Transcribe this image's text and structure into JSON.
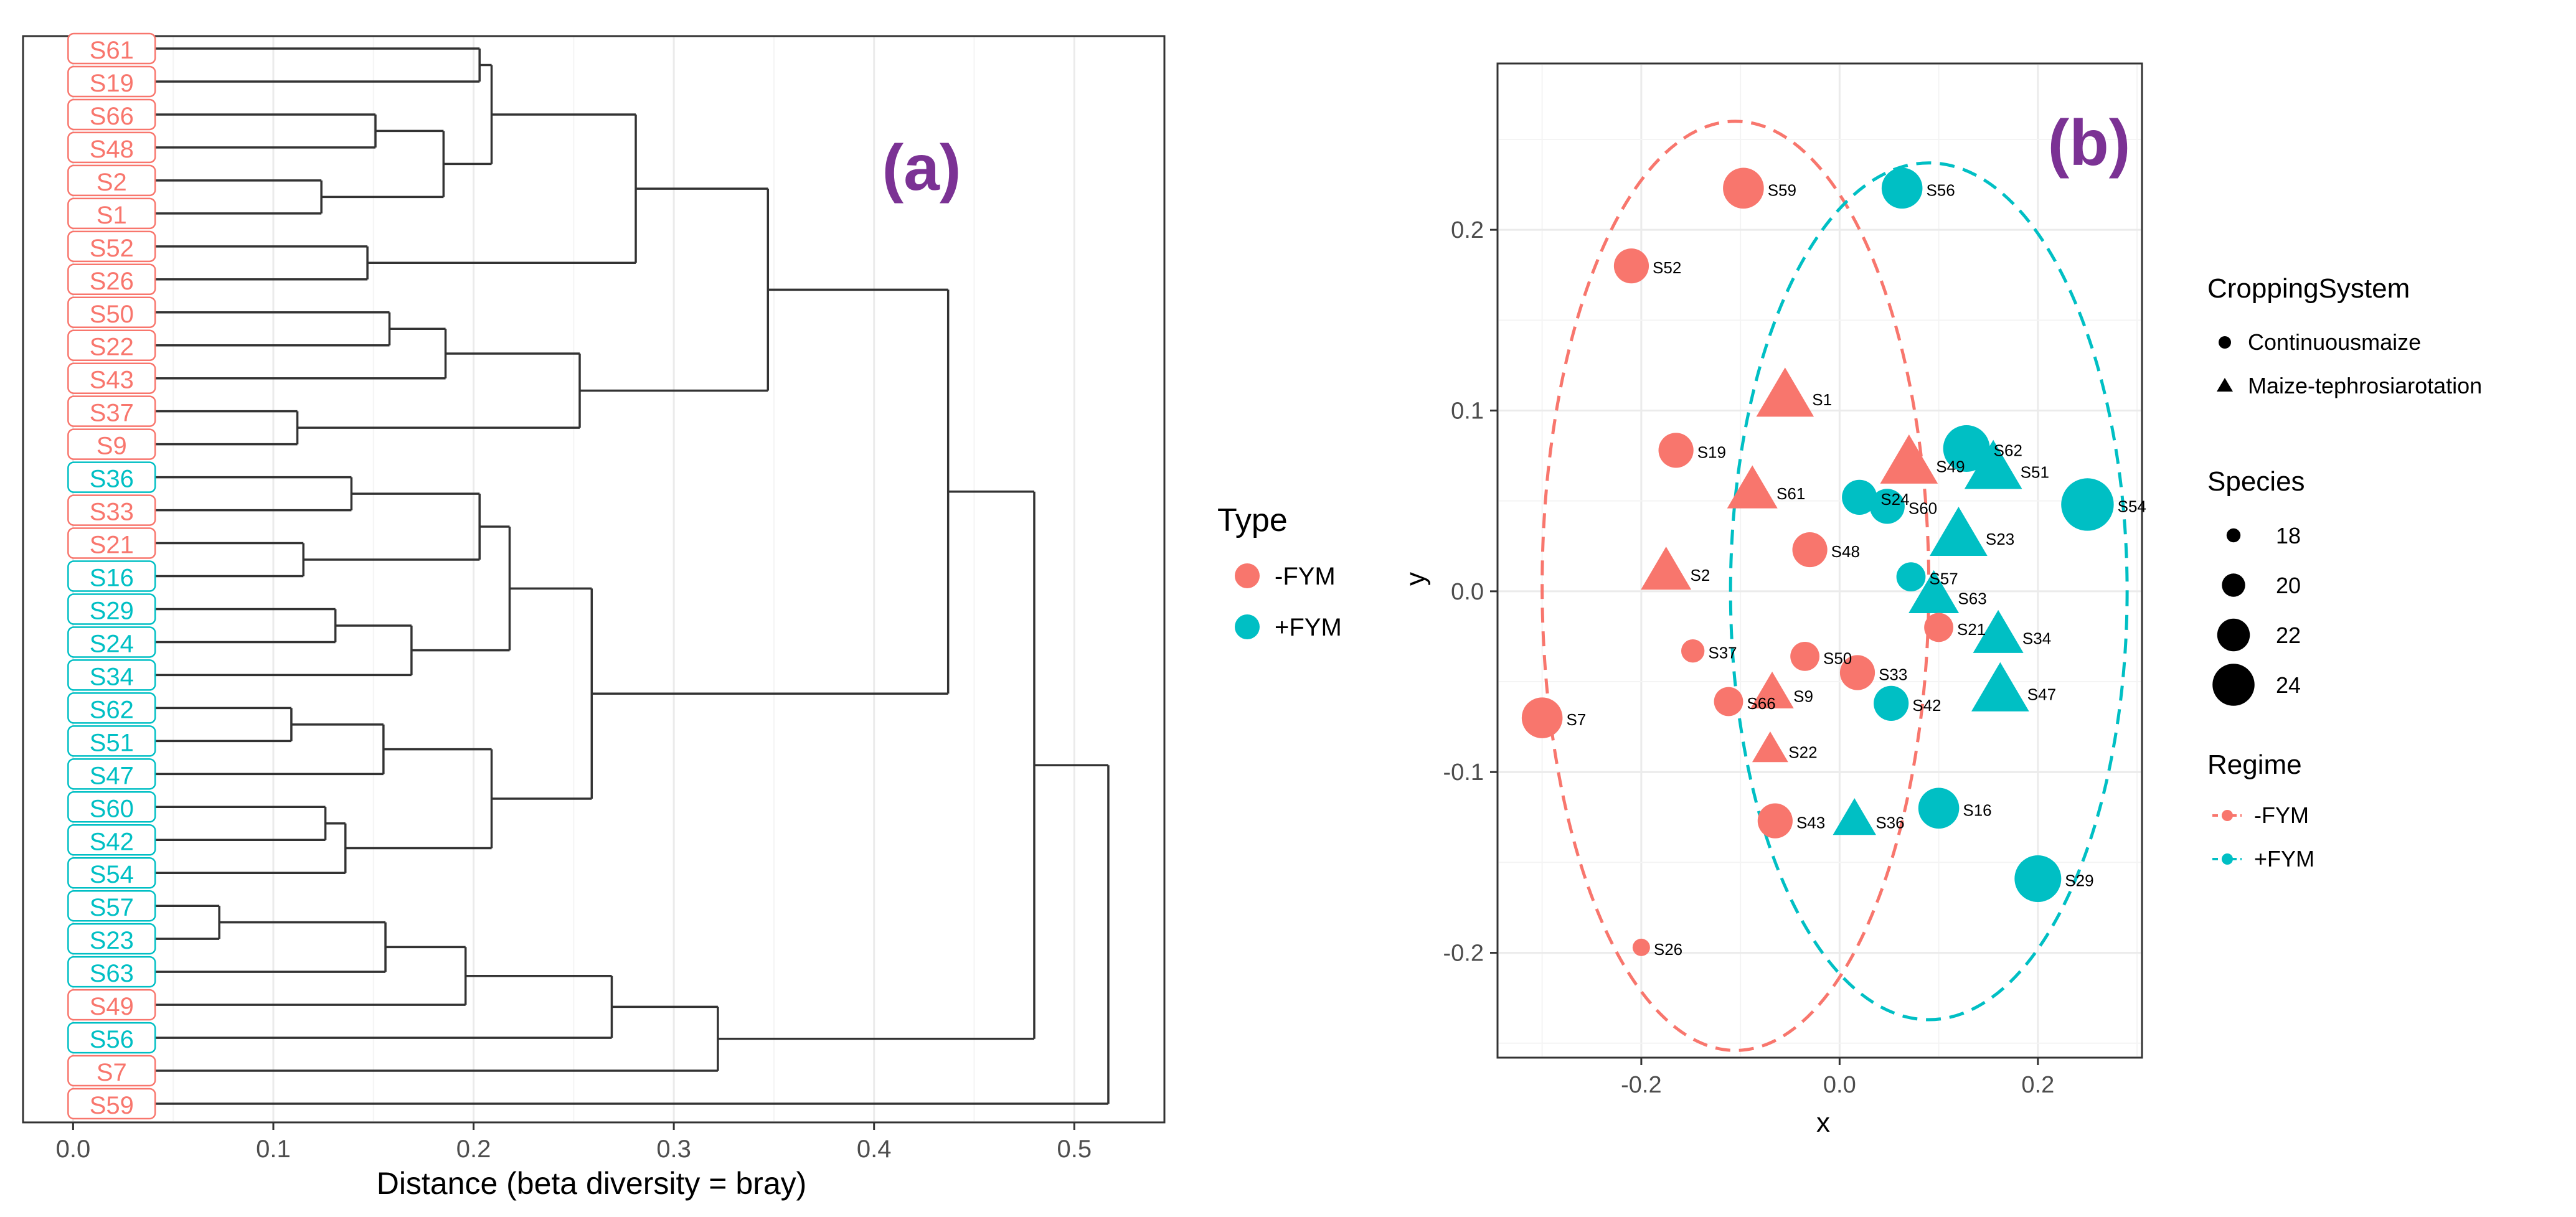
{
  "colors": {
    "minus_fym": "#F8766D",
    "plus_fym": "#00BFC4",
    "tree_line": "#333333",
    "panel_label": "#7B3294",
    "grid": "#EBEBEB",
    "axis_text": "#4D4D4D"
  },
  "chart_data": [
    {
      "type": "dendrogram",
      "panel_label": "(a)",
      "xlabel": "Distance (beta diversity = bray)",
      "xlim": [
        -0.025,
        0.545
      ],
      "xticks": [
        0.0,
        0.1,
        0.2,
        0.3,
        0.4,
        0.5
      ],
      "xtick_labels": [
        "0.0",
        "0.1",
        "0.2",
        "0.3",
        "0.4",
        "0.5"
      ],
      "grid": true,
      "legend": {
        "title": "Type",
        "entries": [
          {
            "label": "-FYM",
            "color": "#F8766D"
          },
          {
            "label": "+FYM",
            "color": "#00BFC4"
          }
        ],
        "placement": "right"
      },
      "leaves": [
        {
          "label": "S61",
          "type": "-FYM"
        },
        {
          "label": "S19",
          "type": "-FYM"
        },
        {
          "label": "S66",
          "type": "-FYM"
        },
        {
          "label": "S48",
          "type": "-FYM"
        },
        {
          "label": "S2",
          "type": "-FYM"
        },
        {
          "label": "S1",
          "type": "-FYM"
        },
        {
          "label": "S52",
          "type": "-FYM"
        },
        {
          "label": "S26",
          "type": "-FYM"
        },
        {
          "label": "S50",
          "type": "-FYM"
        },
        {
          "label": "S22",
          "type": "-FYM"
        },
        {
          "label": "S43",
          "type": "-FYM"
        },
        {
          "label": "S37",
          "type": "-FYM"
        },
        {
          "label": "S9",
          "type": "-FYM"
        },
        {
          "label": "S36",
          "type": "+FYM"
        },
        {
          "label": "S33",
          "type": "-FYM"
        },
        {
          "label": "S21",
          "type": "-FYM"
        },
        {
          "label": "S16",
          "type": "+FYM"
        },
        {
          "label": "S29",
          "type": "+FYM"
        },
        {
          "label": "S24",
          "type": "+FYM"
        },
        {
          "label": "S34",
          "type": "+FYM"
        },
        {
          "label": "S62",
          "type": "+FYM"
        },
        {
          "label": "S51",
          "type": "+FYM"
        },
        {
          "label": "S47",
          "type": "+FYM"
        },
        {
          "label": "S60",
          "type": "+FYM"
        },
        {
          "label": "S42",
          "type": "+FYM"
        },
        {
          "label": "S54",
          "type": "+FYM"
        },
        {
          "label": "S57",
          "type": "+FYM"
        },
        {
          "label": "S23",
          "type": "+FYM"
        },
        {
          "label": "S63",
          "type": "+FYM"
        },
        {
          "label": "S49",
          "type": "-FYM"
        },
        {
          "label": "S56",
          "type": "+FYM"
        },
        {
          "label": "S7",
          "type": "-FYM"
        },
        {
          "label": "S59",
          "type": "-FYM"
        }
      ],
      "merges": [
        {
          "id": "A",
          "children": [
            "L0",
            "L1"
          ],
          "height": 0.203
        },
        {
          "id": "B",
          "children": [
            "L2",
            "L3"
          ],
          "height": 0.151
        },
        {
          "id": "C",
          "children": [
            "L4",
            "L5"
          ],
          "height": 0.124
        },
        {
          "id": "D",
          "children": [
            "B",
            "C"
          ],
          "height": 0.185
        },
        {
          "id": "E",
          "children": [
            "A",
            "D"
          ],
          "height": 0.209
        },
        {
          "id": "F",
          "children": [
            "L6",
            "L7"
          ],
          "height": 0.147
        },
        {
          "id": "G",
          "children": [
            "E",
            "F"
          ],
          "height": 0.281
        },
        {
          "id": "H",
          "children": [
            "L8",
            "L9"
          ],
          "height": 0.158
        },
        {
          "id": "I",
          "children": [
            "H",
            "L10"
          ],
          "height": 0.186
        },
        {
          "id": "J",
          "children": [
            "L11",
            "L12"
          ],
          "height": 0.112
        },
        {
          "id": "K",
          "children": [
            "I",
            "J"
          ],
          "height": 0.253
        },
        {
          "id": "L",
          "children": [
            "G",
            "K"
          ],
          "height": 0.347
        },
        {
          "id": "M",
          "children": [
            "L13",
            "L14"
          ],
          "height": 0.139
        },
        {
          "id": "N",
          "children": [
            "L15",
            "L16"
          ],
          "height": 0.115
        },
        {
          "id": "O",
          "children": [
            "M",
            "N"
          ],
          "height": 0.203
        },
        {
          "id": "P",
          "children": [
            "L17",
            "L18"
          ],
          "height": 0.131
        },
        {
          "id": "Q",
          "children": [
            "P",
            "L19"
          ],
          "height": 0.169
        },
        {
          "id": "R",
          "children": [
            "O",
            "Q"
          ],
          "height": 0.218
        },
        {
          "id": "S",
          "children": [
            "L20",
            "L21"
          ],
          "height": 0.109
        },
        {
          "id": "T",
          "children": [
            "S",
            "L22"
          ],
          "height": 0.155
        },
        {
          "id": "U",
          "children": [
            "L23",
            "L24"
          ],
          "height": 0.126
        },
        {
          "id": "V",
          "children": [
            "U",
            "L25"
          ],
          "height": 0.136
        },
        {
          "id": "W",
          "children": [
            "T",
            "V"
          ],
          "height": 0.209
        },
        {
          "id": "X",
          "children": [
            "R",
            "W"
          ],
          "height": 0.259
        },
        {
          "id": "Y",
          "children": [
            "L",
            "X"
          ],
          "height": 0.437
        },
        {
          "id": "Z",
          "children": [
            "L26",
            "L27"
          ],
          "height": 0.073
        },
        {
          "id": "AA",
          "children": [
            "Z",
            "L28"
          ],
          "height": 0.156
        },
        {
          "id": "AB",
          "children": [
            "AA",
            "L29"
          ],
          "height": 0.196
        },
        {
          "id": "AC",
          "children": [
            "AB",
            "L30"
          ],
          "height": 0.269
        },
        {
          "id": "AD",
          "children": [
            "AC",
            "L31"
          ],
          "height": 0.322
        },
        {
          "id": "AE",
          "children": [
            "Y",
            "AD"
          ],
          "height": 0.48
        },
        {
          "id": "AF",
          "children": [
            "AE",
            "L32"
          ],
          "height": 0.517
        }
      ]
    },
    {
      "type": "scatter",
      "panel_label": "(b)",
      "xlabel": "x",
      "ylabel": "y",
      "xlim": [
        -0.345,
        0.305
      ],
      "ylim": [
        -0.258,
        0.292
      ],
      "xticks": [
        -0.2,
        0.0,
        0.2
      ],
      "xtick_labels": [
        "-0.2",
        "0.0",
        "0.2"
      ],
      "yticks": [
        -0.2,
        -0.1,
        0.0,
        0.1,
        0.2
      ],
      "ytick_labels": [
        "-0.2",
        "-0.1",
        "0.0",
        "0.1",
        "0.2"
      ],
      "grid": true,
      "ellipses": [
        {
          "regime": "-FYM",
          "color": "#F8766D",
          "center": [
            -0.105,
            0.003
          ],
          "semi_x": 0.195,
          "semi_y": 0.257
        },
        {
          "regime": "+FYM",
          "color": "#00BFC4",
          "center": [
            0.09,
            0.0
          ],
          "semi_x": 0.2,
          "semi_y": 0.237
        }
      ],
      "points": [
        {
          "label": "S59",
          "x": -0.097,
          "y": 0.223,
          "regime": "-FYM",
          "system": "Continuousmaize",
          "species": 22
        },
        {
          "label": "S56",
          "x": 0.063,
          "y": 0.223,
          "regime": "+FYM",
          "system": "Continuousmaize",
          "species": 22
        },
        {
          "label": "S52",
          "x": -0.21,
          "y": 0.18,
          "regime": "-FYM",
          "system": "Continuousmaize",
          "species": 21
        },
        {
          "label": "S1",
          "x": -0.055,
          "y": 0.107,
          "regime": "-FYM",
          "system": "Maize-tephrosiarotation",
          "species": 23
        },
        {
          "label": "S19",
          "x": -0.165,
          "y": 0.078,
          "regime": "-FYM",
          "system": "Continuousmaize",
          "species": 21
        },
        {
          "label": "S49",
          "x": 0.07,
          "y": 0.07,
          "regime": "-FYM",
          "system": "Maize-tephrosiarotation",
          "species": 23
        },
        {
          "label": "S62",
          "x": 0.128,
          "y": 0.079,
          "regime": "+FYM",
          "system": "Continuousmaize",
          "species": 23
        },
        {
          "label": "S51",
          "x": 0.155,
          "y": 0.067,
          "regime": "+FYM",
          "system": "Maize-tephrosiarotation",
          "species": 23
        },
        {
          "label": "S54",
          "x": 0.25,
          "y": 0.048,
          "regime": "+FYM",
          "system": "Continuousmaize",
          "species": 24
        },
        {
          "label": "S61",
          "x": -0.088,
          "y": 0.055,
          "regime": "-FYM",
          "system": "Maize-tephrosiarotation",
          "species": 22
        },
        {
          "label": "S24",
          "x": 0.02,
          "y": 0.052,
          "regime": "+FYM",
          "system": "Continuousmaize",
          "species": 21
        },
        {
          "label": "S60",
          "x": 0.048,
          "y": 0.047,
          "regime": "+FYM",
          "system": "Continuousmaize",
          "species": 21
        },
        {
          "label": "S23",
          "x": 0.12,
          "y": 0.03,
          "regime": "+FYM",
          "system": "Maize-tephrosiarotation",
          "species": 23
        },
        {
          "label": "S48",
          "x": -0.03,
          "y": 0.023,
          "regime": "-FYM",
          "system": "Continuousmaize",
          "species": 21
        },
        {
          "label": "S2",
          "x": -0.175,
          "y": 0.01,
          "regime": "-FYM",
          "system": "Maize-tephrosiarotation",
          "species": 22
        },
        {
          "label": "S57",
          "x": 0.072,
          "y": 0.008,
          "regime": "+FYM",
          "system": "Continuousmaize",
          "species": 20
        },
        {
          "label": "S63",
          "x": 0.095,
          "y": -0.003,
          "regime": "+FYM",
          "system": "Maize-tephrosiarotation",
          "species": 22
        },
        {
          "label": "S21",
          "x": 0.1,
          "y": -0.02,
          "regime": "-FYM",
          "system": "Continuousmaize",
          "species": 20
        },
        {
          "label": "S34",
          "x": 0.16,
          "y": -0.025,
          "regime": "+FYM",
          "system": "Maize-tephrosiarotation",
          "species": 22
        },
        {
          "label": "S37",
          "x": -0.148,
          "y": -0.033,
          "regime": "-FYM",
          "system": "Continuousmaize",
          "species": 19
        },
        {
          "label": "S50",
          "x": -0.035,
          "y": -0.036,
          "regime": "-FYM",
          "system": "Continuousmaize",
          "species": 20
        },
        {
          "label": "S33",
          "x": 0.018,
          "y": -0.045,
          "regime": "-FYM",
          "system": "Continuousmaize",
          "species": 21
        },
        {
          "label": "S9",
          "x": -0.068,
          "y": -0.057,
          "regime": "-FYM",
          "system": "Maize-tephrosiarotation",
          "species": 21
        },
        {
          "label": "S66",
          "x": -0.112,
          "y": -0.061,
          "regime": "-FYM",
          "system": "Continuousmaize",
          "species": 20
        },
        {
          "label": "S42",
          "x": 0.052,
          "y": -0.062,
          "regime": "+FYM",
          "system": "Continuousmaize",
          "species": 21
        },
        {
          "label": "S47",
          "x": 0.162,
          "y": -0.056,
          "regime": "+FYM",
          "system": "Maize-tephrosiarotation",
          "species": 23
        },
        {
          "label": "S7",
          "x": -0.3,
          "y": -0.07,
          "regime": "-FYM",
          "system": "Continuousmaize",
          "species": 22
        },
        {
          "label": "S22",
          "x": -0.07,
          "y": -0.088,
          "regime": "-FYM",
          "system": "Maize-tephrosiarotation",
          "species": 20
        },
        {
          "label": "S16",
          "x": 0.1,
          "y": -0.12,
          "regime": "+FYM",
          "system": "Continuousmaize",
          "species": 22
        },
        {
          "label": "S43",
          "x": -0.065,
          "y": -0.127,
          "regime": "-FYM",
          "system": "Continuousmaize",
          "species": 21
        },
        {
          "label": "S36",
          "x": 0.015,
          "y": -0.127,
          "regime": "+FYM",
          "system": "Maize-tephrosiarotation",
          "species": 21
        },
        {
          "label": "S29",
          "x": 0.2,
          "y": -0.159,
          "regime": "+FYM",
          "system": "Continuousmaize",
          "species": 23
        },
        {
          "label": "S26",
          "x": -0.2,
          "y": -0.197,
          "regime": "-FYM",
          "system": "Continuousmaize",
          "species": 18
        }
      ],
      "legends": {
        "cropping": {
          "title": "CroppingSystem",
          "entries": [
            {
              "label": "Continuousmaize",
              "shape": "circle"
            },
            {
              "label": "Maize-tephrosiarotation",
              "shape": "triangle"
            }
          ]
        },
        "species": {
          "title": "Species",
          "entries": [
            {
              "label": "18",
              "value": 18
            },
            {
              "label": "20",
              "value": 20
            },
            {
              "label": "22",
              "value": 22
            },
            {
              "label": "24",
              "value": 24
            }
          ]
        },
        "regime": {
          "title": "Regime",
          "entries": [
            {
              "label": "-FYM",
              "color": "#F8766D"
            },
            {
              "label": "+FYM",
              "color": "#00BFC4"
            }
          ]
        }
      }
    }
  ]
}
